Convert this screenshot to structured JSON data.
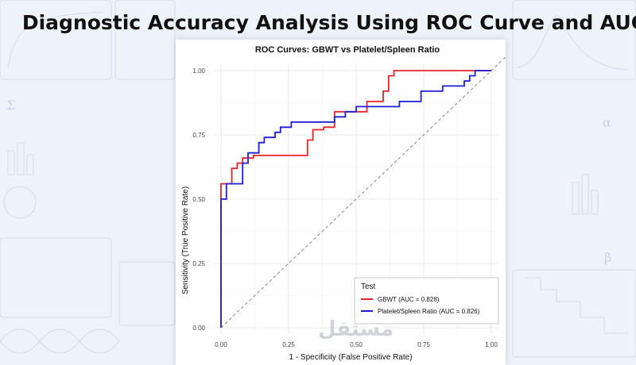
{
  "headline": "Diagnostic Accuracy Analysis Using ROC Curve and AUC",
  "watermark": "مستقل",
  "chart_data": {
    "type": "line",
    "title": "ROC Curves: GBWT vs Platelet/Spleen Ratio",
    "xlabel": "1 - Specificity (False Positive Rate)",
    "ylabel": "Sensitivity (True Positive Rate)",
    "xlim": [
      0,
      1
    ],
    "ylim": [
      0,
      1
    ],
    "x_ticks": [
      "0.00",
      "0.25",
      "0.50",
      "0.75",
      "1.00"
    ],
    "y_ticks": [
      "0.00",
      "0.25",
      "0.50",
      "0.75",
      "1.00"
    ],
    "grid": true,
    "legend_title": "Test",
    "legend_position": "bottom-right",
    "reference_line": "diagonal",
    "series": [
      {
        "name": "GBWT (AUC = 0.828)",
        "color": "#e8242a",
        "points": [
          [
            0,
            0
          ],
          [
            0,
            0.5
          ],
          [
            0,
            0.56
          ],
          [
            0.04,
            0.56
          ],
          [
            0.04,
            0.62
          ],
          [
            0.06,
            0.62
          ],
          [
            0.06,
            0.64
          ],
          [
            0.08,
            0.64
          ],
          [
            0.08,
            0.66
          ],
          [
            0.12,
            0.66
          ],
          [
            0.12,
            0.67
          ],
          [
            0.32,
            0.67
          ],
          [
            0.32,
            0.73
          ],
          [
            0.34,
            0.73
          ],
          [
            0.34,
            0.77
          ],
          [
            0.38,
            0.77
          ],
          [
            0.38,
            0.78
          ],
          [
            0.42,
            0.78
          ],
          [
            0.42,
            0.84
          ],
          [
            0.54,
            0.84
          ],
          [
            0.54,
            0.88
          ],
          [
            0.6,
            0.88
          ],
          [
            0.6,
            0.92
          ],
          [
            0.62,
            0.92
          ],
          [
            0.62,
            0.98
          ],
          [
            0.64,
            0.98
          ],
          [
            0.64,
            1
          ],
          [
            1,
            1
          ]
        ]
      },
      {
        "name": "Platelet/Spleen Ratio (AUC = 0.826)",
        "color": "#1f1fd6",
        "points": [
          [
            0,
            0
          ],
          [
            0,
            0.5
          ],
          [
            0.02,
            0.5
          ],
          [
            0.02,
            0.56
          ],
          [
            0.08,
            0.56
          ],
          [
            0.08,
            0.64
          ],
          [
            0.1,
            0.64
          ],
          [
            0.1,
            0.68
          ],
          [
            0.14,
            0.68
          ],
          [
            0.14,
            0.72
          ],
          [
            0.16,
            0.72
          ],
          [
            0.16,
            0.74
          ],
          [
            0.2,
            0.74
          ],
          [
            0.2,
            0.76
          ],
          [
            0.22,
            0.76
          ],
          [
            0.22,
            0.78
          ],
          [
            0.26,
            0.78
          ],
          [
            0.26,
            0.8
          ],
          [
            0.42,
            0.8
          ],
          [
            0.42,
            0.82
          ],
          [
            0.46,
            0.82
          ],
          [
            0.46,
            0.84
          ],
          [
            0.5,
            0.84
          ],
          [
            0.5,
            0.86
          ],
          [
            0.66,
            0.86
          ],
          [
            0.66,
            0.88
          ],
          [
            0.74,
            0.88
          ],
          [
            0.74,
            0.92
          ],
          [
            0.82,
            0.92
          ],
          [
            0.82,
            0.94
          ],
          [
            0.9,
            0.94
          ],
          [
            0.9,
            0.96
          ],
          [
            0.92,
            0.96
          ],
          [
            0.92,
            0.98
          ],
          [
            0.94,
            0.98
          ],
          [
            0.94,
            1
          ],
          [
            1,
            1
          ]
        ]
      }
    ]
  }
}
